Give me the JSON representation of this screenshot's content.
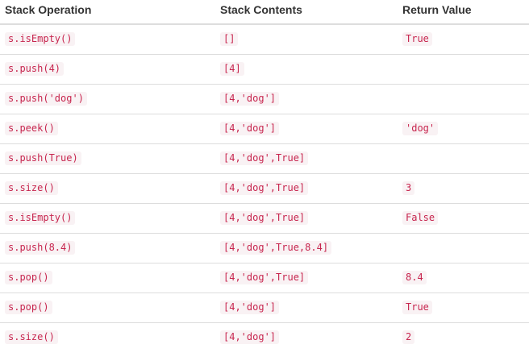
{
  "table": {
    "headers": [
      "Stack Operation",
      "Stack Contents",
      "Return Value"
    ],
    "rows": [
      {
        "operation": "s.isEmpty()",
        "contents": "[]",
        "returns": "True"
      },
      {
        "operation": "s.push(4)",
        "contents": "[4]",
        "returns": ""
      },
      {
        "operation": "s.push('dog')",
        "contents": "[4,'dog']",
        "returns": ""
      },
      {
        "operation": "s.peek()",
        "contents": "[4,'dog']",
        "returns": "'dog'"
      },
      {
        "operation": "s.push(True)",
        "contents": "[4,'dog',True]",
        "returns": ""
      },
      {
        "operation": "s.size()",
        "contents": "[4,'dog',True]",
        "returns": "3"
      },
      {
        "operation": "s.isEmpty()",
        "contents": "[4,'dog',True]",
        "returns": "False"
      },
      {
        "operation": "s.push(8.4)",
        "contents": "[4,'dog',True,8.4]",
        "returns": ""
      },
      {
        "operation": "s.pop()",
        "contents": "[4,'dog',True]",
        "returns": "8.4"
      },
      {
        "operation": "s.pop()",
        "contents": "[4,'dog']",
        "returns": "True"
      },
      {
        "operation": "s.size()",
        "contents": "[4,'dog']",
        "returns": "2"
      }
    ]
  },
  "colors": {
    "code_text": "#c7254e",
    "code_background": "#f9f2f4",
    "row_border": "#dddddd",
    "header_text": "#333333"
  }
}
